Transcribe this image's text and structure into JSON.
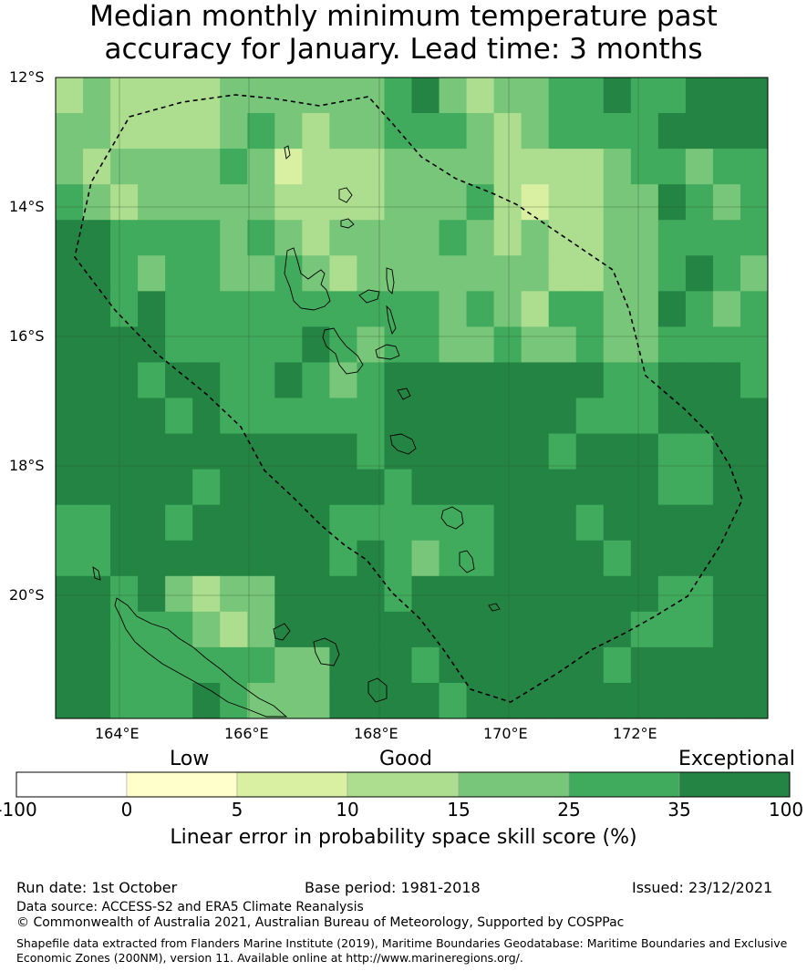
{
  "title_line1": "Median monthly minimum temperature past",
  "title_line2": "accuracy for January. Lead time: 3 months",
  "map": {
    "lon_ticks": [
      "164°E",
      "166°E",
      "168°E",
      "170°E",
      "172°E"
    ],
    "lat_ticks": [
      "12°S",
      "14°S",
      "16°S",
      "18°S",
      "20°S"
    ],
    "colors": {
      "c0": "#ffffff",
      "c1": "#ffffcc",
      "c2": "#d9f0a3",
      "c3": "#addd8e",
      "c4": "#78c679",
      "c5": "#41ab5d",
      "c6": "#238443"
    }
  },
  "colorbar": {
    "category_labels": [
      "Low",
      "Good",
      "Exceptional"
    ],
    "ticks": [
      "-100",
      "0",
      "5",
      "10",
      "15",
      "25",
      "35",
      "100"
    ],
    "title": "Linear error in probability space skill score (%)"
  },
  "footer": {
    "run_date": "Run date: 1st October",
    "base_period": "Base period: 1981-2018",
    "issued": "Issued: 23/12/2021",
    "data_source": "Data source: ACCESS-S2 and ERA5 Climate Reanalysis",
    "copyright": "© Commonwealth of Australia 2021, Australian Bureau of Meteorology, Supported by COSPPac",
    "shapefile_line1": "Shapefile data extracted from Flanders Marine Institute (2019), Maritime Boundaries Geodatabase: Maritime Boundaries and Exclusive",
    "shapefile_line2": "Economic Zones (200NM), version 11. Available online at http://www.marineregions.org/."
  }
}
